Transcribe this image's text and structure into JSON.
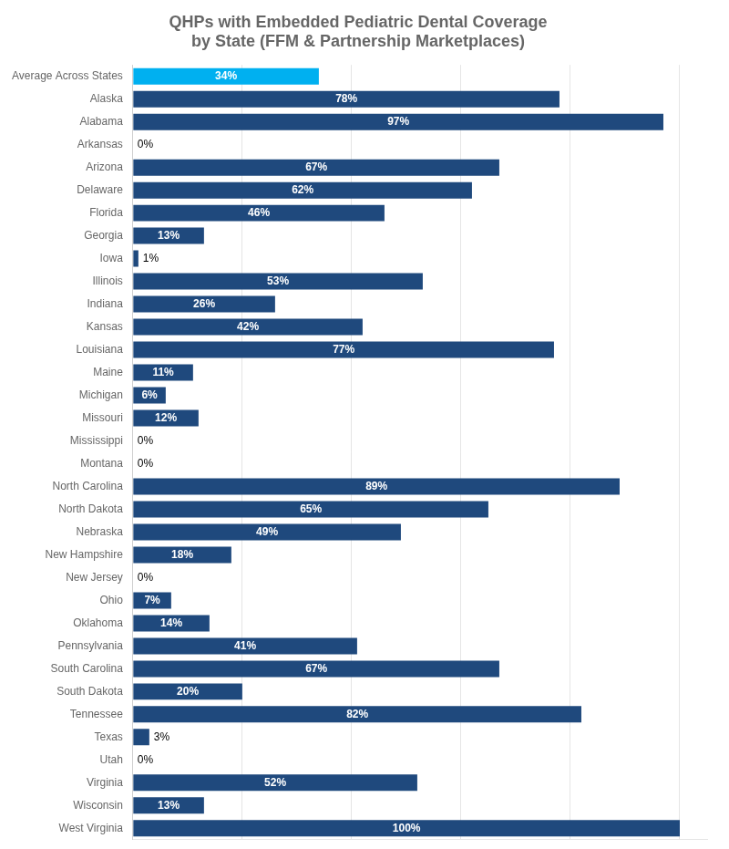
{
  "chart_data": {
    "type": "bar",
    "title": "QHPs with Embedded Pediatric Dental Coverage\nby State (FFM & Partnership Marketplaces)",
    "orientation": "horizontal",
    "categories": [
      "Average Across States",
      "Alaska",
      "Alabama",
      "Arkansas",
      "Arizona",
      "Delaware",
      "Florida",
      "Georgia",
      "Iowa",
      "Illinois",
      "Indiana",
      "Kansas",
      "Louisiana",
      "Maine",
      "Michigan",
      "Missouri",
      "Mississippi",
      "Montana",
      "North Carolina",
      "North Dakota",
      "Nebraska",
      "New Hampshire",
      "New Jersey",
      "Ohio",
      "Oklahoma",
      "Pennsylvania",
      "South Carolina",
      "South Dakota",
      "Tennessee",
      "Texas",
      "Utah",
      "Virginia",
      "Wisconsin",
      "West Virginia"
    ],
    "values": [
      34,
      78,
      97,
      0,
      67,
      62,
      46,
      13,
      1,
      53,
      26,
      42,
      77,
      11,
      6,
      12,
      0,
      0,
      89,
      65,
      49,
      18,
      0,
      7,
      14,
      41,
      67,
      20,
      82,
      3,
      0,
      52,
      13,
      100
    ],
    "value_labels": [
      "34%",
      "78%",
      "97%",
      "0%",
      "67%",
      "62%",
      "46%",
      "13%",
      "1%",
      "53%",
      "26%",
      "42%",
      "77%",
      "11%",
      "6%",
      "12%",
      "0%",
      "0%",
      "89%",
      "65%",
      "49%",
      "18%",
      "0%",
      "7%",
      "14%",
      "41%",
      "67%",
      "20%",
      "82%",
      "3%",
      "0%",
      "52%",
      "13%",
      "100%"
    ],
    "colors": [
      "#00b0f0",
      "#1f497d",
      "#1f497d",
      "#1f497d",
      "#1f497d",
      "#1f497d",
      "#1f497d",
      "#1f497d",
      "#1f497d",
      "#1f497d",
      "#1f497d",
      "#1f497d",
      "#1f497d",
      "#1f497d",
      "#1f497d",
      "#1f497d",
      "#1f497d",
      "#1f497d",
      "#1f497d",
      "#1f497d",
      "#1f497d",
      "#1f497d",
      "#1f497d",
      "#1f497d",
      "#1f497d",
      "#1f497d",
      "#1f497d",
      "#1f497d",
      "#1f497d",
      "#1f497d",
      "#1f497d",
      "#1f497d",
      "#1f497d",
      "#1f497d"
    ],
    "xlim": [
      0,
      105
    ],
    "xticks": [
      0,
      20,
      40,
      60,
      80,
      100
    ],
    "grid": true,
    "tick_labels": "y",
    "data_labels": true
  }
}
